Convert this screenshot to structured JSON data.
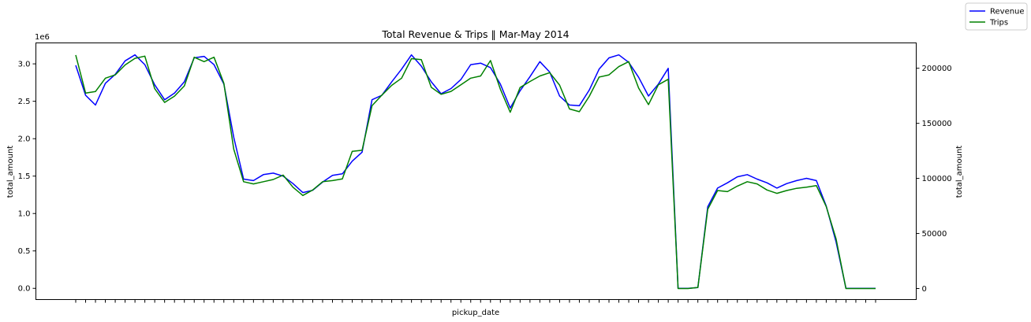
{
  "chart_data": {
    "type": "line",
    "title": "Total Revenue & Trips  ‖  Mar-May 2014",
    "xlabel": "pickup_date",
    "ylabel_left": "total_amount",
    "ylabel_right": "total_amount",
    "left_axis_multiplier": "1e6",
    "ylim_left": [
      -0.15,
      3.28
    ],
    "ylim_right": [
      -10000,
      223000
    ],
    "yticks_left": [
      "0.0",
      "0.5",
      "1.0",
      "1.5",
      "2.0",
      "2.5",
      "3.0"
    ],
    "yticks_right": [
      "0",
      "50000",
      "100000",
      "150000",
      "200000"
    ],
    "x_tick_count": 82,
    "x_tick_labels_visible": false,
    "grid": false,
    "legend_placement": "figure top-right",
    "series": [
      {
        "name": "Revenue",
        "axis": "left",
        "color": "#0000ff",
        "values": [
          2.98,
          2.58,
          2.45,
          2.74,
          2.86,
          3.04,
          3.12,
          2.99,
          2.72,
          2.52,
          2.61,
          2.76,
          3.08,
          3.1,
          2.99,
          2.73,
          2.02,
          1.46,
          1.44,
          1.52,
          1.54,
          1.5,
          1.4,
          1.28,
          1.31,
          1.42,
          1.51,
          1.53,
          1.7,
          1.82,
          2.52,
          2.58,
          2.76,
          2.93,
          3.12,
          2.97,
          2.76,
          2.6,
          2.67,
          2.79,
          2.99,
          3.01,
          2.95,
          2.73,
          2.41,
          2.64,
          2.83,
          3.03,
          2.89,
          2.57,
          2.45,
          2.44,
          2.65,
          2.93,
          3.08,
          3.12,
          3.02,
          2.82,
          2.57,
          2.73,
          2.94,
          0.0,
          0.0,
          0.01,
          1.09,
          1.34,
          1.41,
          1.49,
          1.52,
          1.46,
          1.41,
          1.34,
          1.4,
          1.44,
          1.47,
          1.44,
          1.1,
          0.62,
          0.0,
          0.0,
          0.0,
          0.0
        ]
      },
      {
        "name": "Trips",
        "axis": "right",
        "color": "#008000",
        "values": [
          212000,
          177500,
          178800,
          191000,
          194000,
          203000,
          209000,
          211000,
          181500,
          169000,
          174700,
          184000,
          210000,
          206000,
          210000,
          186300,
          126600,
          97000,
          95000,
          97000,
          99000,
          103000,
          92000,
          84500,
          89500,
          97000,
          98000,
          99500,
          124500,
          125500,
          166000,
          175600,
          184500,
          191000,
          208700,
          207800,
          182700,
          176300,
          179000,
          185000,
          191000,
          193000,
          207000,
          181000,
          160000,
          182500,
          188000,
          193000,
          196000,
          184700,
          163000,
          160500,
          174500,
          192000,
          194000,
          201500,
          206000,
          182000,
          167000,
          185000,
          190000,
          0,
          0,
          1000,
          72000,
          89000,
          88000,
          93000,
          97000,
          95000,
          89500,
          86400,
          89000,
          91000,
          92000,
          93500,
          74500,
          45000,
          0,
          0,
          0,
          0
        ]
      }
    ]
  }
}
